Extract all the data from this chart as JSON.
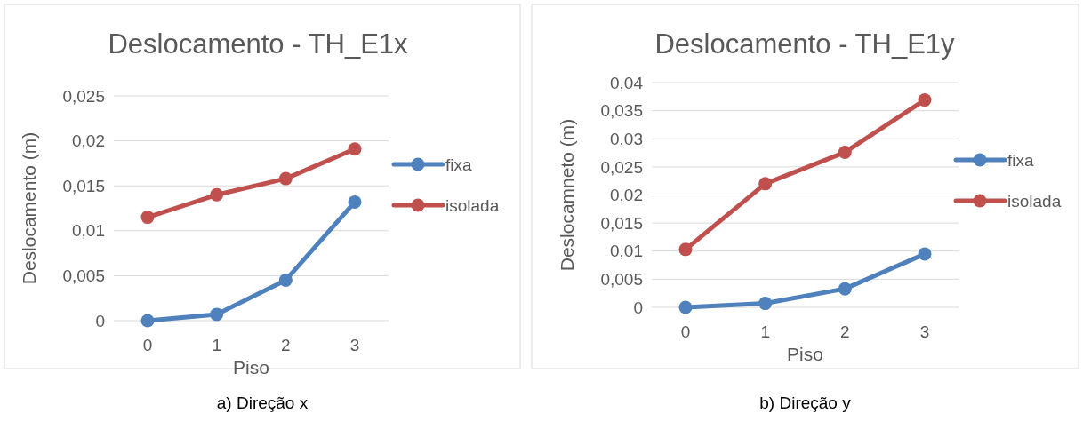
{
  "chart_data": [
    {
      "type": "line",
      "title": "Deslocamento - TH_E1x",
      "xlabel": "Piso",
      "ylabel": "Deslocamento (m)",
      "categories": [
        "0",
        "1",
        "2",
        "3"
      ],
      "series": [
        {
          "name": "fixa",
          "color": "#4f81bd",
          "values": [
            0,
            0.0007,
            0.0045,
            0.0132
          ]
        },
        {
          "name": "isolada",
          "color": "#c0504d",
          "values": [
            0.0115,
            0.014,
            0.0158,
            0.0191
          ]
        }
      ],
      "ylim": [
        0,
        0.025
      ],
      "yticks": [
        {
          "value": 0,
          "label": "0"
        },
        {
          "value": 0.005,
          "label": "0,005"
        },
        {
          "value": 0.01,
          "label": "0,01"
        },
        {
          "value": 0.015,
          "label": "0,015"
        },
        {
          "value": 0.02,
          "label": "0,02"
        },
        {
          "value": 0.025,
          "label": "0,025"
        }
      ],
      "grid": "y",
      "legend": "right",
      "marker": "circle",
      "line_style": "solid",
      "annotations": [
        "a) Direção x"
      ]
    },
    {
      "type": "line",
      "title": "Deslocamento - TH_E1y",
      "xlabel": "Piso",
      "ylabel": "Deslocamneto (m)",
      "categories": [
        "0",
        "1",
        "2",
        "3"
      ],
      "series": [
        {
          "name": "fixa",
          "color": "#4f81bd",
          "values": [
            0,
            0.0007,
            0.0033,
            0.0095
          ]
        },
        {
          "name": "isolada",
          "color": "#c0504d",
          "values": [
            0.0103,
            0.022,
            0.0276,
            0.0369
          ]
        }
      ],
      "ylim": [
        0,
        0.04
      ],
      "yticks": [
        {
          "value": 0,
          "label": "0"
        },
        {
          "value": 0.005,
          "label": "0,005"
        },
        {
          "value": 0.01,
          "label": "0,01"
        },
        {
          "value": 0.015,
          "label": "0,015"
        },
        {
          "value": 0.02,
          "label": "0,02"
        },
        {
          "value": 0.025,
          "label": "0,025"
        },
        {
          "value": 0.03,
          "label": "0,03"
        },
        {
          "value": 0.035,
          "label": "0,035"
        },
        {
          "value": 0.04,
          "label": "0,04"
        }
      ],
      "grid": "y",
      "legend": "right",
      "marker": "circle",
      "line_style": "solid",
      "annotations": [
        "b) Direção y"
      ]
    }
  ]
}
